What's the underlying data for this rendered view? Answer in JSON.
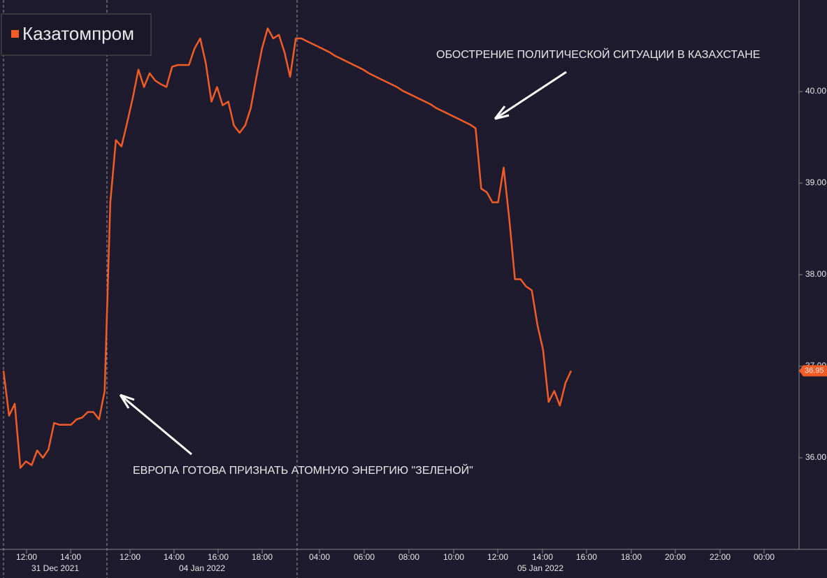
{
  "chart_data": {
    "type": "line",
    "series": [
      {
        "name": "Казатомпром",
        "color": "#f25c27",
        "values": [
          36.95,
          36.46,
          36.59,
          35.89,
          35.96,
          35.92,
          36.08,
          36.0,
          36.09,
          36.38,
          36.36,
          36.36,
          36.36,
          36.42,
          36.44,
          36.5,
          36.5,
          36.42,
          36.73,
          38.79,
          39.47,
          39.4,
          39.66,
          39.93,
          40.24,
          40.05,
          40.2,
          40.12,
          40.08,
          40.05,
          40.27,
          40.29,
          40.29,
          40.29,
          40.47,
          40.58,
          40.31,
          39.89,
          40.05,
          39.85,
          39.89,
          39.63,
          39.55,
          39.63,
          39.82,
          40.16,
          40.47,
          40.69,
          40.58,
          40.62,
          40.43,
          40.16,
          40.58,
          40.58,
          40.55,
          40.52,
          40.49,
          40.46,
          40.43,
          40.39,
          40.36,
          40.33,
          40.3,
          40.27,
          40.24,
          40.2,
          40.17,
          40.14,
          40.11,
          40.08,
          40.05,
          40.01,
          39.98,
          39.95,
          39.92,
          39.89,
          39.86,
          39.82,
          39.79,
          39.76,
          39.73,
          39.7,
          39.67,
          39.64,
          39.6,
          38.94,
          38.9,
          38.79,
          38.79,
          39.17,
          38.6,
          37.95,
          37.95,
          37.87,
          37.83,
          37.45,
          37.18,
          36.61,
          36.73,
          36.57,
          36.82,
          36.95
        ]
      }
    ],
    "ylim": [
      35,
      41
    ],
    "yticks": [
      {
        "value": 36,
        "label": "36.00"
      },
      {
        "value": 37,
        "label": "37.00"
      },
      {
        "value": 38,
        "label": "38.00"
      },
      {
        "value": 39,
        "label": "39.00"
      },
      {
        "value": 40,
        "label": "40.00"
      }
    ],
    "x_tick_labels": [
      "12:00",
      "14:00",
      "12:00",
      "14:00",
      "16:00",
      "18:00",
      "04:00",
      "06:00",
      "08:00",
      "10:00",
      "12:00",
      "14:00",
      "16:00",
      "18:00",
      "20:00",
      "22:00",
      "00:00"
    ],
    "x_date_labels": [
      "31 Dec 2021",
      "04 Jan 2022",
      "05 Jan 2022"
    ],
    "annotations": [
      "ОБОСТРЕНИЕ ПОЛИТИЧЕСКОЙ СИТУАЦИИ В КАЗАХСТАНЕ",
      "ЕВРОПА ГОТОВА ПРИЗНАТЬ АТОМНУЮ ЭНЕРГИЮ \"ЗЕЛЕНОЙ\""
    ]
  }
}
